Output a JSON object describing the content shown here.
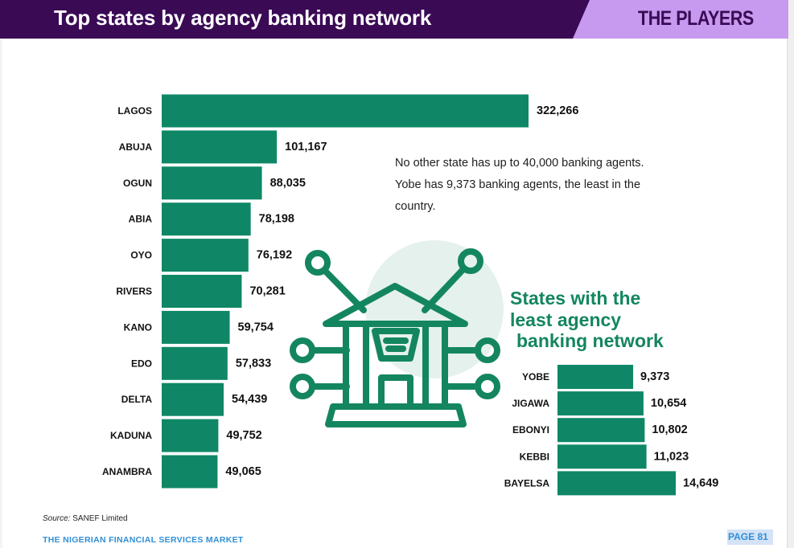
{
  "header": {
    "title": "Top states by agency banking network",
    "section": "THE PLAYERS"
  },
  "note": "No other state has up to 40,000 banking agents. Yobe has 9,373 banking agents, the least in the country.",
  "least_title": {
    "line1": "States with the",
    "line2": "least agency",
    "line3": "banking network"
  },
  "source": {
    "label": "Source:",
    "text": "SANEF Limited"
  },
  "footer": {
    "publication": "THE NIGERIAN FINANCIAL SERVICES MARKET",
    "page": "PAGE 81"
  },
  "colors": {
    "bar": "#0f8766",
    "header_purple": "#3a0a55",
    "header_lilac": "#c79af0",
    "accent_green": "#14865f",
    "circle_bg": "#e5f1ec",
    "footer_blue": "#2f8fd6"
  },
  "icons": {
    "illustration": "bank-network-icon"
  },
  "chart_data": [
    {
      "type": "bar",
      "orientation": "horizontal",
      "title": "Top states by agency banking network",
      "categories": [
        "LAGOS",
        "ABUJA",
        "OGUN",
        "ABIA",
        "OYO",
        "RIVERS",
        "KANO",
        "EDO",
        "DELTA",
        "KADUNA",
        "ANAMBRA"
      ],
      "values": [
        322266,
        101167,
        88035,
        78198,
        76192,
        70281,
        59754,
        57833,
        54439,
        49752,
        49065
      ],
      "value_labels": [
        "322,266",
        "101,167",
        "88,035",
        "78,198",
        "76,192",
        "70,281",
        "59,754",
        "57,833",
        "54,439",
        "49,752",
        "49,065"
      ],
      "xlim": [
        0,
        322266
      ],
      "grid": false,
      "legend": "none"
    },
    {
      "type": "bar",
      "orientation": "horizontal",
      "title": "States with the least agency banking network",
      "categories": [
        "YOBE",
        "JIGAWA",
        "EBONYI",
        "KEBBI",
        "BAYELSA"
      ],
      "values": [
        9373,
        10654,
        10802,
        11023,
        14649
      ],
      "value_labels": [
        "9,373",
        "10,654",
        "10,802",
        "11,023",
        "14,649"
      ],
      "xlim": [
        0,
        14649
      ],
      "grid": false,
      "legend": "none"
    }
  ]
}
